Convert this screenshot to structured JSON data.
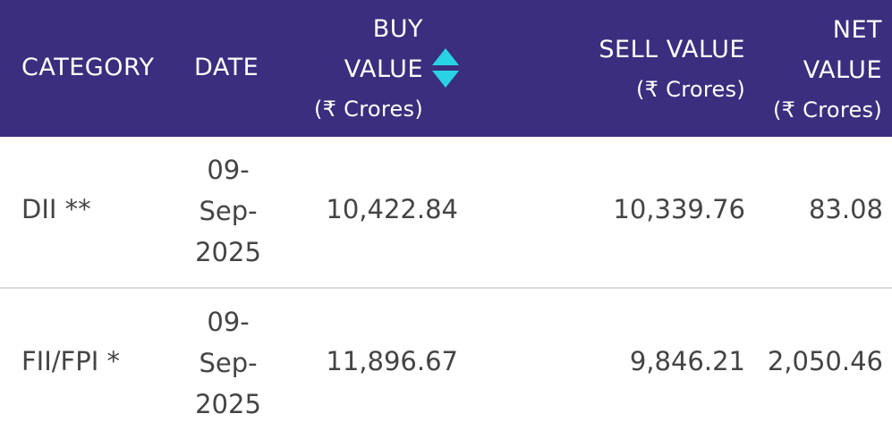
{
  "header": {
    "category": "CATEGORY",
    "date": "DATE",
    "buy_line1": "BUY",
    "buy_line2": "VALUE",
    "buy_unit": "(₹ Crores)",
    "sell_line1": "SELL VALUE",
    "sell_unit": "(₹ Crores)",
    "net_line1": "NET",
    "net_line2": "VALUE",
    "net_unit": "(₹ Crores)"
  },
  "sort_icon": "sort-up-down-icon",
  "colors": {
    "header_bg": "#3b2e7e",
    "header_text": "#ffffff",
    "sort_icon": "#29d3e6",
    "body_text": "#444444",
    "divider": "#dcdcdc"
  },
  "rows": [
    {
      "category": "DII **",
      "date_parts": [
        "09-",
        "Sep-",
        "2025"
      ],
      "buy_value": "10,422.84",
      "sell_value": "10,339.76",
      "net_value": "83.08"
    },
    {
      "category": "FII/FPI *",
      "date_parts": [
        "09-",
        "Sep-",
        "2025"
      ],
      "buy_value": "11,896.67",
      "sell_value": "9,846.21",
      "net_value": "2,050.46"
    }
  ]
}
